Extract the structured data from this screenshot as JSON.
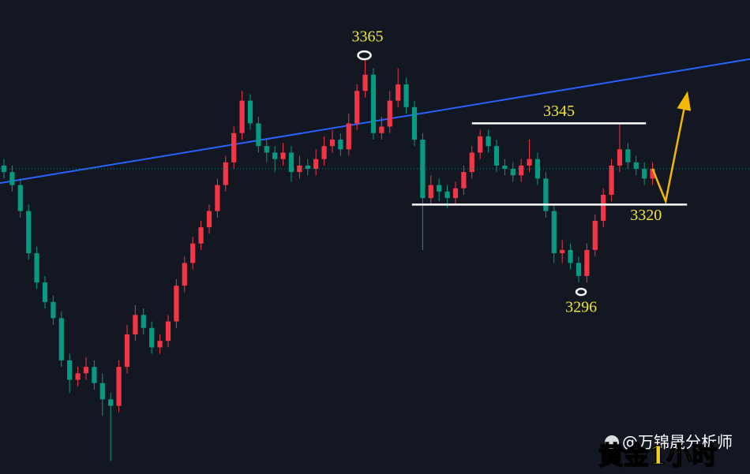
{
  "chart_data": {
    "type": "candlestick",
    "open": [
      3332,
      3330,
      3326,
      3318,
      3305,
      3296,
      3290,
      3285,
      3272,
      3266,
      3268,
      3270,
      3265,
      3260,
      3258,
      3270,
      3280,
      3286,
      3282,
      3276,
      3278,
      3284,
      3295,
      3302,
      3308,
      3313,
      3318,
      3326,
      3333,
      3342,
      3352,
      3345,
      3338,
      3336,
      3334,
      3336,
      3330,
      3332,
      3331,
      3334,
      3338,
      3340,
      3337,
      3345,
      3355,
      3360,
      3342,
      3344,
      3352,
      3357,
      3350,
      3340,
      3322,
      3326,
      3324,
      3322,
      3325,
      3330,
      3336,
      3341,
      3338,
      3332,
      3331,
      3329,
      3332,
      3334,
      3328,
      3318,
      3305,
      3306,
      3302,
      3298,
      3306,
      3315,
      3323,
      3332,
      3337,
      3333,
      3331,
      3328
    ],
    "high": [
      3334,
      3332,
      3328,
      3320,
      3307,
      3298,
      3292,
      3287,
      3274,
      3270,
      3273,
      3272,
      3268,
      3262,
      3272,
      3283,
      3289,
      3288,
      3284,
      3280,
      3286,
      3297,
      3304,
      3310,
      3315,
      3320,
      3328,
      3335,
      3344,
      3355,
      3354,
      3347,
      3340,
      3338,
      3339,
      3338,
      3335,
      3334,
      3337,
      3341,
      3343,
      3342,
      3348,
      3357,
      3365,
      3362,
      3347,
      3355,
      3362,
      3359,
      3352,
      3342,
      3329,
      3328,
      3326,
      3327,
      3332,
      3338,
      3343,
      3343,
      3340,
      3334,
      3333,
      3334,
      3340,
      3336,
      3330,
      3320,
      3309,
      3308,
      3304,
      3308,
      3317,
      3325,
      3334,
      3345,
      3339,
      3335,
      3333,
      3333
    ],
    "low": [
      3328,
      3324,
      3316,
      3303,
      3294,
      3288,
      3283,
      3270,
      3262,
      3264,
      3266,
      3263,
      3255,
      3241,
      3256,
      3268,
      3278,
      3280,
      3274,
      3274,
      3276,
      3282,
      3293,
      3300,
      3306,
      3311,
      3316,
      3324,
      3331,
      3340,
      3343,
      3336,
      3333,
      3330,
      3332,
      3327,
      3328,
      3329,
      3329,
      3332,
      3336,
      3335,
      3335,
      3343,
      3353,
      3340,
      3340,
      3342,
      3350,
      3348,
      3338,
      3306,
      3320,
      3321,
      3319,
      3320,
      3323,
      3328,
      3334,
      3336,
      3330,
      3329,
      3327,
      3327,
      3330,
      3326,
      3316,
      3302,
      3302,
      3300,
      3296,
      3296,
      3304,
      3313,
      3321,
      3330,
      3331,
      3329,
      3326,
      3326
    ],
    "close": [
      3330,
      3326,
      3318,
      3305,
      3296,
      3290,
      3285,
      3272,
      3266,
      3268,
      3270,
      3265,
      3260,
      3258,
      3270,
      3280,
      3286,
      3282,
      3276,
      3278,
      3284,
      3295,
      3302,
      3308,
      3313,
      3318,
      3326,
      3333,
      3342,
      3352,
      3345,
      3338,
      3336,
      3334,
      3336,
      3330,
      3332,
      3331,
      3334,
      3338,
      3340,
      3337,
      3345,
      3355,
      3360,
      3342,
      3344,
      3352,
      3357,
      3350,
      3340,
      3322,
      3326,
      3324,
      3322,
      3325,
      3330,
      3336,
      3341,
      3338,
      3332,
      3331,
      3329,
      3332,
      3334,
      3328,
      3318,
      3305,
      3306,
      3302,
      3298,
      3306,
      3315,
      3323,
      3332,
      3337,
      3333,
      3331,
      3328,
      3331
    ],
    "up_color": "#f23645",
    "down_color": "#089981",
    "xlim": [
      -0.48,
      90.87
    ],
    "ylim": [
      3237,
      3383
    ],
    "trendline": {
      "x": [
        -0.48,
        90.87
      ],
      "y": [
        3326.6,
        3364.8
      ],
      "color": "#2962ff"
    },
    "levels": [
      {
        "value": 3345,
        "from": 57,
        "to": 78.2,
        "label_side": "above"
      },
      {
        "value": 3320,
        "from": 49.7,
        "to": 83.2,
        "label_side": "below-end"
      }
    ],
    "markers": [
      {
        "value": 3365,
        "x": 43.9,
        "side": "above"
      },
      {
        "value": 3296,
        "x": 70.3,
        "side": "below"
      }
    ],
    "projection": {
      "x": [
        79,
        80.6,
        83.2
      ],
      "y": [
        3331,
        3321,
        3354
      ],
      "color": "#f5b800"
    }
  },
  "watermark": "@万锦晟分析师",
  "caption": "黄金1小时"
}
